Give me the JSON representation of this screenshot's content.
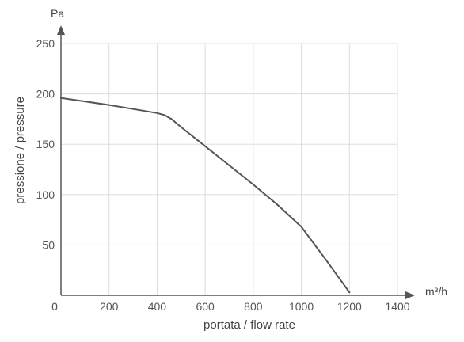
{
  "chart_data": {
    "type": "line",
    "title": "",
    "xlabel": "portata / flow rate",
    "ylabel": "pressione / pressure",
    "x_unit": "m³/h",
    "y_unit": "Pa",
    "xlim": [
      0,
      1400
    ],
    "ylim": [
      0,
      250
    ],
    "x_ticks": [
      0,
      200,
      400,
      600,
      800,
      1000,
      1200,
      1400
    ],
    "y_ticks": [
      50,
      100,
      150,
      200,
      250
    ],
    "grid": true,
    "legend": "none",
    "series": [
      {
        "color": "#555555",
        "points": [
          {
            "x": 0,
            "y": 196
          },
          {
            "x": 200,
            "y": 189
          },
          {
            "x": 300,
            "y": 185
          },
          {
            "x": 400,
            "y": 181
          },
          {
            "x": 430,
            "y": 179
          },
          {
            "x": 460,
            "y": 175
          },
          {
            "x": 500,
            "y": 167
          },
          {
            "x": 600,
            "y": 148
          },
          {
            "x": 700,
            "y": 129
          },
          {
            "x": 800,
            "y": 110
          },
          {
            "x": 900,
            "y": 90
          },
          {
            "x": 1000,
            "y": 68
          },
          {
            "x": 1100,
            "y": 36
          },
          {
            "x": 1200,
            "y": 3
          }
        ]
      }
    ]
  }
}
